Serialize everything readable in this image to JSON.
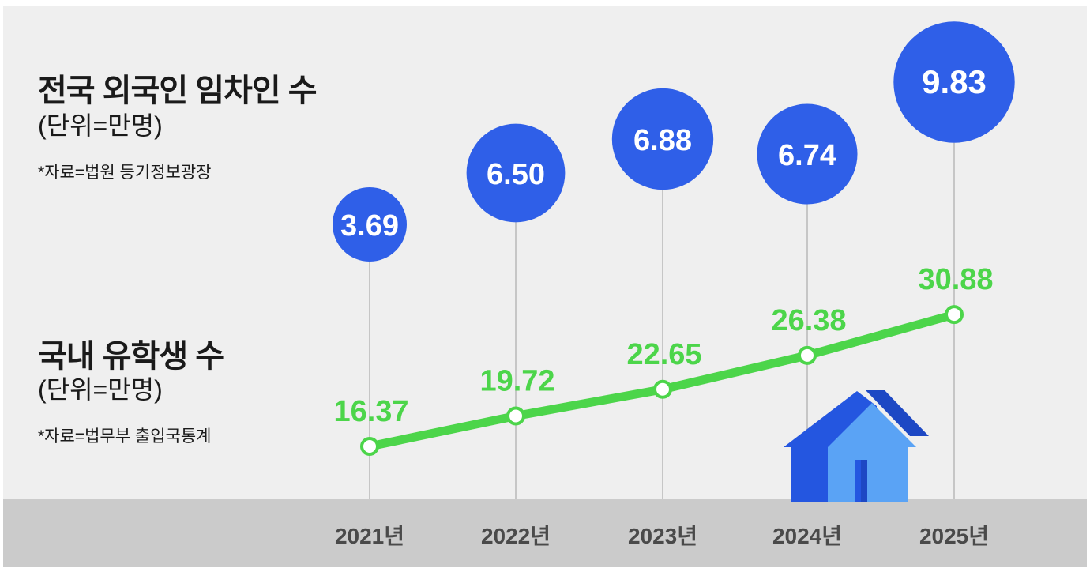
{
  "headings": {
    "foreign_tenants": {
      "title": "전국 외국인 임차인 수",
      "unit": "(단위=만명)",
      "source": "*자료=법원 등기정보광장"
    },
    "students": {
      "title": "국내 유학생 수",
      "unit": "(단위=만명)",
      "source": "*자료=법무부 출입국통계"
    }
  },
  "colors": {
    "bubble": "#2f5fe8",
    "line": "#4cd54a",
    "stem": "#b9b9b9",
    "house_dark": "#2456e0",
    "house_light": "#5aa3f5"
  },
  "icons": [
    "house-icon"
  ],
  "chart_data": {
    "type": "bubble+line",
    "categories": [
      "2021년",
      "2022년",
      "2023년",
      "2024년",
      "2025년"
    ],
    "series": [
      {
        "name": "전국 외국인 임차인 수",
        "unit": "만명",
        "type": "bubble",
        "values": [
          3.69,
          6.5,
          6.88,
          6.74,
          9.83
        ],
        "labels": [
          "3.69",
          "6.50",
          "6.88",
          "6.74",
          "9.83"
        ]
      },
      {
        "name": "국내 유학생 수",
        "unit": "만명",
        "type": "line",
        "values": [
          16.37,
          19.72,
          22.65,
          26.38,
          30.88
        ],
        "labels": [
          "16.37",
          "19.72",
          "22.65",
          "26.38",
          "30.88"
        ]
      }
    ]
  }
}
